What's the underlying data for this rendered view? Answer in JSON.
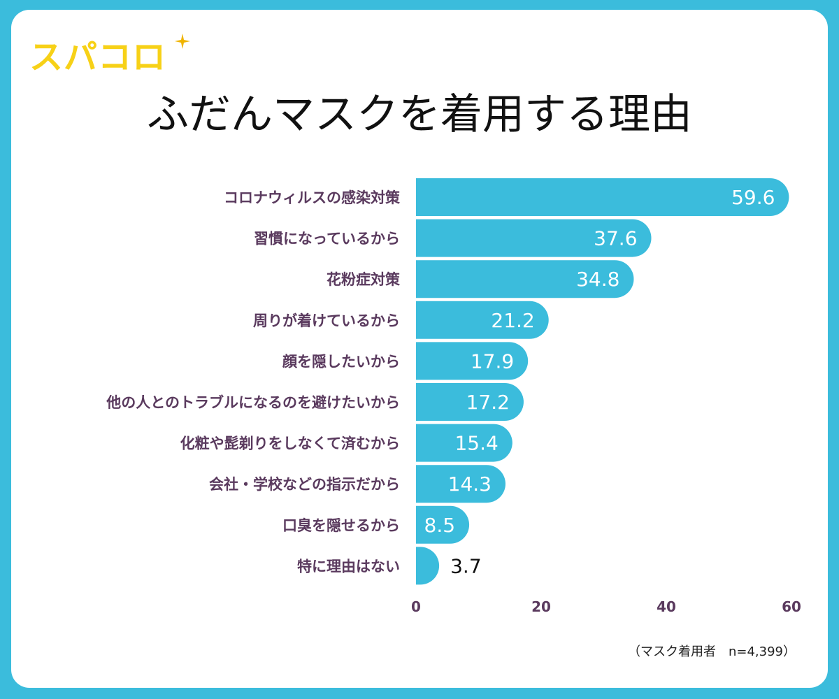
{
  "logo": {
    "text": "スパコロ",
    "color": "#f7d117"
  },
  "title": "ふだんマスクを着用する理由",
  "note": "（マスク着用者　n=4,399）",
  "colors": {
    "bar": "#3bbcdc",
    "frame": "#3bbcdc",
    "label": "#5a3a5e",
    "value_inside": "#ffffff",
    "value_outside": "#111111"
  },
  "chart_data": {
    "type": "bar",
    "orientation": "horizontal",
    "categories": [
      "コロナウィルスの感染対策",
      "習慣になっているから",
      "花粉症対策",
      "周りが着けているから",
      "顔を隠したいから",
      "他の人とのトラブルになるのを避けたいから",
      "化粧や髭剃りをしなくて済むから",
      "会社・学校などの指示だから",
      "口臭を隠せるから",
      "特に理由はない"
    ],
    "values": [
      59.6,
      37.6,
      34.8,
      21.2,
      17.9,
      17.2,
      15.4,
      14.3,
      8.5,
      3.7
    ],
    "value_labels": [
      "59.6",
      "37.6",
      "34.8",
      "21.2",
      "17.9",
      "17.2",
      "15.4",
      "14.3",
      "8.5",
      "3.7"
    ],
    "xlim": [
      0,
      60
    ],
    "xticks": [
      "0",
      "20",
      "40",
      "60"
    ],
    "grid": false,
    "legend": "none"
  }
}
